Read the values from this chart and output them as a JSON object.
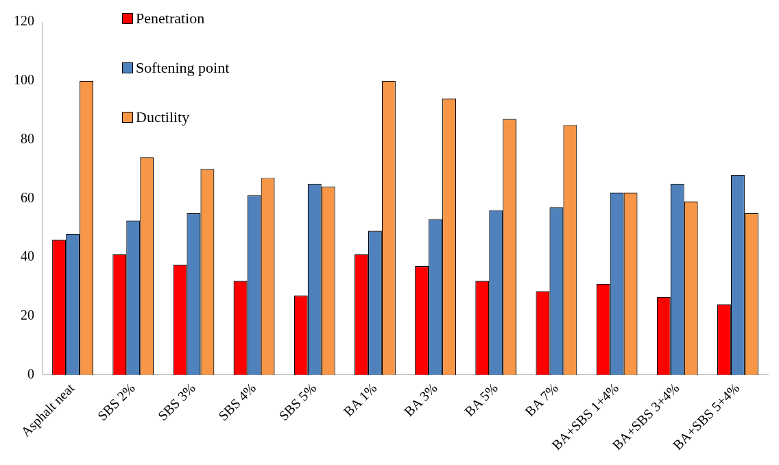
{
  "chart_data": {
    "type": "bar",
    "categories": [
      "Asphalt neat",
      "SBS 2%",
      "SBS 3%",
      "SBS 4%",
      "SBS 5%",
      "BA 1%",
      "BA 3%",
      "BA 5%",
      "BA 7%",
      "BA+SBS 1+4%",
      "BA+SBS 3+4%",
      "BA+SBS 5+4%"
    ],
    "series": [
      {
        "name": "Penetration",
        "color": "#ff0000",
        "values": [
          46,
          41,
          37.5,
          32,
          27,
          41,
          37,
          32,
          28.5,
          31,
          26.5,
          24
        ]
      },
      {
        "name": "Softening point",
        "color": "#4f81bd",
        "values": [
          48,
          52.5,
          55,
          61,
          65,
          49,
          53,
          56,
          57,
          62,
          65,
          68
        ]
      },
      {
        "name": "Ductility",
        "color": "#f79646",
        "values": [
          100,
          74,
          70,
          67,
          64,
          100,
          94,
          87,
          85,
          62,
          59,
          55
        ]
      }
    ],
    "ylim": [
      0,
      120
    ],
    "yticks": [
      0,
      20,
      40,
      60,
      80,
      100,
      120
    ],
    "grid": false,
    "legend": "top left"
  }
}
